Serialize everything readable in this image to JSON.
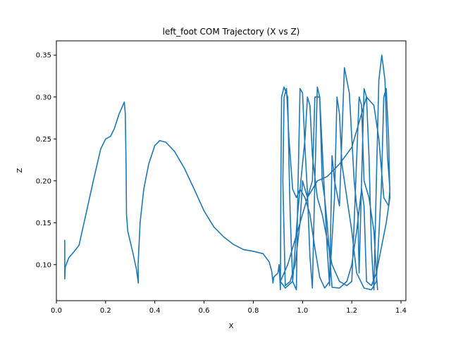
{
  "chart_data": {
    "type": "line",
    "title": "left_foot COM Trajectory (X vs Z)",
    "xlabel": "X",
    "ylabel": "Z",
    "xlim": [
      -0.0,
      1.42
    ],
    "ylim": [
      0.057,
      0.367
    ],
    "grid": false,
    "x_ticks": [
      0.0,
      0.2,
      0.4,
      0.6,
      0.8,
      1.0,
      1.2,
      1.4
    ],
    "x_tick_labels": [
      "0.0",
      "0.2",
      "0.4",
      "0.6",
      "0.8",
      "1.0",
      "1.2",
      "1.4"
    ],
    "y_ticks": [
      0.1,
      0.15,
      0.2,
      0.25,
      0.3,
      0.35
    ],
    "y_tick_labels": [
      "0.10",
      "0.15",
      "0.20",
      "0.25",
      "0.30",
      "0.35"
    ],
    "series": [
      {
        "color": "#1f77b4",
        "points": [
          [
            0.034,
            0.129
          ],
          [
            0.034,
            0.083
          ],
          [
            0.036,
            0.097
          ],
          [
            0.05,
            0.108
          ],
          [
            0.07,
            0.115
          ],
          [
            0.092,
            0.123
          ],
          [
            0.12,
            0.16
          ],
          [
            0.15,
            0.2
          ],
          [
            0.18,
            0.238
          ],
          [
            0.2,
            0.25
          ],
          [
            0.22,
            0.253
          ],
          [
            0.235,
            0.262
          ],
          [
            0.255,
            0.28
          ],
          [
            0.27,
            0.29
          ],
          [
            0.276,
            0.294
          ],
          [
            0.28,
            0.28
          ],
          [
            0.283,
            0.22
          ],
          [
            0.285,
            0.16
          ],
          [
            0.29,
            0.14
          ],
          [
            0.31,
            0.115
          ],
          [
            0.325,
            0.095
          ],
          [
            0.333,
            0.078
          ],
          [
            0.332,
            0.1
          ],
          [
            0.34,
            0.15
          ],
          [
            0.355,
            0.19
          ],
          [
            0.375,
            0.22
          ],
          [
            0.4,
            0.242
          ],
          [
            0.42,
            0.248
          ],
          [
            0.445,
            0.246
          ],
          [
            0.48,
            0.235
          ],
          [
            0.52,
            0.215
          ],
          [
            0.56,
            0.19
          ],
          [
            0.6,
            0.164
          ],
          [
            0.64,
            0.145
          ],
          [
            0.68,
            0.133
          ],
          [
            0.72,
            0.124
          ],
          [
            0.76,
            0.118
          ],
          [
            0.8,
            0.116
          ],
          [
            0.84,
            0.113
          ],
          [
            0.865,
            0.103
          ],
          [
            0.875,
            0.092
          ],
          [
            0.88,
            0.078
          ],
          [
            0.883,
            0.085
          ],
          [
            0.9,
            0.09
          ],
          [
            0.905,
            0.1
          ],
          [
            0.91,
            0.07
          ],
          [
            0.912,
            0.2
          ],
          [
            0.915,
            0.3
          ],
          [
            0.925,
            0.312
          ],
          [
            0.94,
            0.3
          ],
          [
            0.945,
            0.22
          ],
          [
            0.95,
            0.16
          ],
          [
            0.96,
            0.08
          ],
          [
            0.975,
            0.07
          ],
          [
            0.98,
            0.17
          ],
          [
            0.99,
            0.31
          ],
          [
            1.0,
            0.305
          ],
          [
            1.01,
            0.24
          ],
          [
            1.02,
            0.185
          ],
          [
            1.03,
            0.11
          ],
          [
            1.04,
            0.072
          ],
          [
            1.05,
            0.2
          ],
          [
            1.06,
            0.312
          ],
          [
            1.07,
            0.3
          ],
          [
            1.08,
            0.2
          ],
          [
            1.09,
            0.18
          ],
          [
            1.1,
            0.12
          ],
          [
            1.11,
            0.075
          ],
          [
            1.12,
            0.23
          ],
          [
            1.13,
            0.2
          ],
          [
            1.15,
            0.17
          ],
          [
            1.17,
            0.335
          ],
          [
            1.19,
            0.305
          ],
          [
            1.21,
            0.2
          ],
          [
            1.22,
            0.17
          ],
          [
            1.225,
            0.16
          ],
          [
            1.23,
            0.09
          ],
          [
            1.24,
            0.2
          ],
          [
            1.25,
            0.31
          ],
          [
            1.26,
            0.3
          ],
          [
            1.27,
            0.23
          ],
          [
            1.28,
            0.12
          ],
          [
            1.29,
            0.07
          ],
          [
            1.3,
            0.2
          ],
          [
            1.31,
            0.32
          ],
          [
            1.322,
            0.35
          ],
          [
            1.335,
            0.32
          ],
          [
            1.345,
            0.23
          ],
          [
            1.355,
            0.19
          ],
          [
            1.35,
            0.17
          ],
          [
            1.33,
            0.18
          ],
          [
            1.31,
            0.25
          ],
          [
            1.29,
            0.29
          ],
          [
            1.26,
            0.3
          ],
          [
            1.24,
            0.28
          ],
          [
            1.2,
            0.24
          ],
          [
            1.15,
            0.22
          ],
          [
            1.1,
            0.205
          ],
          [
            1.06,
            0.2
          ],
          [
            1.02,
            0.18
          ],
          [
            0.98,
            0.14
          ],
          [
            0.94,
            0.1
          ],
          [
            0.91,
            0.08
          ],
          [
            0.93,
            0.072
          ],
          [
            0.96,
            0.08
          ],
          [
            0.98,
            0.16
          ],
          [
            0.99,
            0.19
          ],
          [
            1.01,
            0.18
          ],
          [
            1.03,
            0.16
          ],
          [
            1.05,
            0.12
          ],
          [
            1.07,
            0.085
          ],
          [
            1.09,
            0.072
          ],
          [
            1.11,
            0.08
          ],
          [
            1.13,
            0.18
          ],
          [
            1.14,
            0.3
          ],
          [
            1.15,
            0.28
          ],
          [
            1.16,
            0.22
          ],
          [
            1.18,
            0.18
          ],
          [
            1.2,
            0.14
          ],
          [
            1.22,
            0.09
          ],
          [
            1.25,
            0.072
          ],
          [
            1.28,
            0.07
          ],
          [
            1.3,
            0.08
          ],
          [
            1.32,
            0.19
          ],
          [
            1.33,
            0.3
          ],
          [
            1.34,
            0.31
          ],
          [
            1.35,
            0.25
          ],
          [
            1.355,
            0.18
          ],
          [
            1.34,
            0.15
          ],
          [
            1.32,
            0.12
          ],
          [
            1.3,
            0.09
          ],
          [
            1.28,
            0.075
          ],
          [
            1.26,
            0.08
          ],
          [
            1.25,
            0.17
          ],
          [
            1.24,
            0.19
          ],
          [
            1.22,
            0.14
          ],
          [
            1.2,
            0.1
          ],
          [
            1.18,
            0.08
          ],
          [
            1.15,
            0.072
          ],
          [
            1.12,
            0.073
          ],
          [
            1.1,
            0.15
          ],
          [
            1.09,
            0.18
          ],
          [
            1.07,
            0.3
          ],
          [
            1.05,
            0.3
          ],
          [
            1.04,
            0.2
          ],
          [
            1.02,
            0.18
          ],
          [
            1.0,
            0.2
          ],
          [
            0.99,
            0.15
          ],
          [
            0.97,
            0.1
          ],
          [
            0.95,
            0.08
          ],
          [
            0.93,
            0.075
          ],
          [
            0.92,
            0.2
          ],
          [
            0.925,
            0.3
          ],
          [
            0.935,
            0.31
          ],
          [
            0.945,
            0.25
          ],
          [
            0.96,
            0.19
          ],
          [
            0.975,
            0.18
          ],
          [
            0.99,
            0.19
          ],
          [
            1.01,
            0.25
          ],
          [
            1.02,
            0.3
          ],
          [
            1.03,
            0.29
          ],
          [
            1.04,
            0.23
          ],
          [
            1.06,
            0.18
          ],
          [
            1.08,
            0.16
          ],
          [
            1.1,
            0.13
          ],
          [
            1.12,
            0.1
          ],
          [
            1.15,
            0.08
          ],
          [
            1.18,
            0.075
          ],
          [
            1.2,
            0.08
          ],
          [
            1.21,
            0.15
          ],
          [
            1.215,
            0.19
          ],
          [
            1.23,
            0.3
          ],
          [
            1.24,
            0.29
          ],
          [
            1.25,
            0.2
          ],
          [
            1.27,
            0.18
          ],
          [
            1.29,
            0.14
          ],
          [
            1.3,
            0.09
          ],
          [
            1.305,
            0.07
          ]
        ]
      }
    ]
  }
}
